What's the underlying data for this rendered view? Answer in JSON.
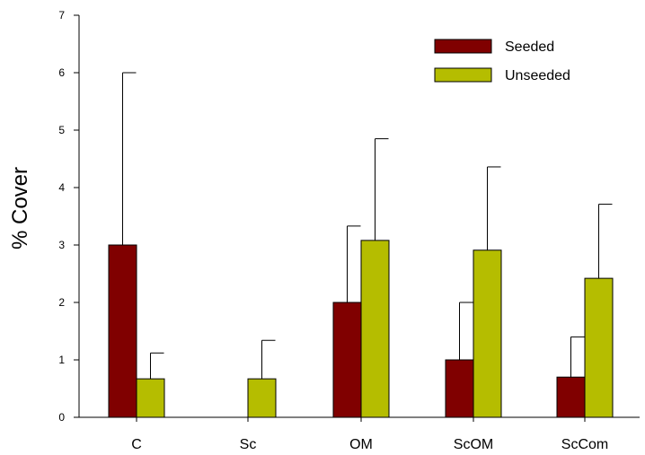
{
  "chart_data": {
    "type": "bar",
    "ylabel": "% Cover",
    "xlabel": "",
    "ylim": [
      0,
      7
    ],
    "yticks": [
      0,
      1,
      2,
      3,
      4,
      5,
      6,
      7
    ],
    "categories": [
      "C",
      "Sc",
      "OM",
      "ScOM",
      "ScCom"
    ],
    "series": [
      {
        "name": "Seeded",
        "color": "#800000",
        "values": [
          3.0,
          0,
          2.0,
          1.0,
          0.7
        ],
        "error": [
          3.0,
          0,
          1.33,
          1.0,
          0.7
        ]
      },
      {
        "name": "Unseeded",
        "color": "#b5bd00",
        "values": [
          0.67,
          0.67,
          3.08,
          2.91,
          2.42
        ],
        "error": [
          0.45,
          0.67,
          1.77,
          1.45,
          1.29
        ]
      }
    ],
    "legend_position": "top-right",
    "grid": false
  }
}
